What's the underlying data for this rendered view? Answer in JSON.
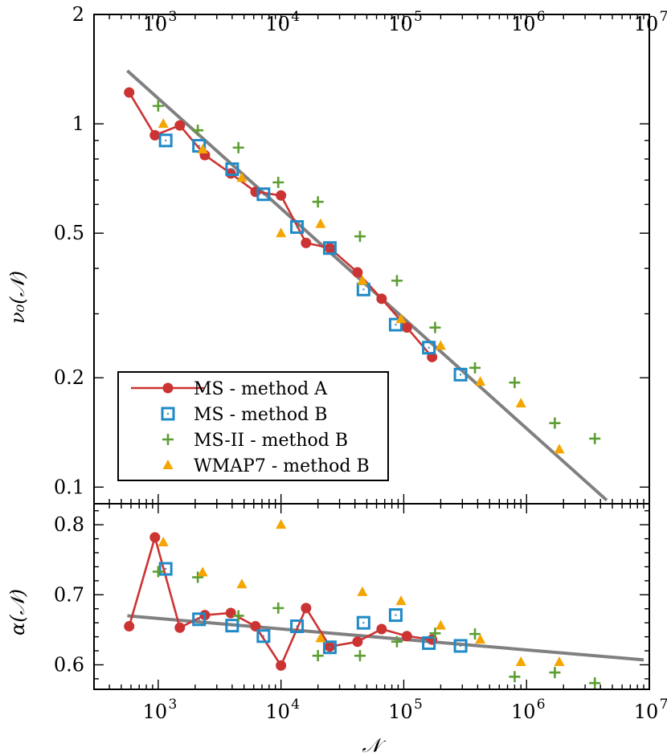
{
  "chart_data": [
    {
      "type": "scatter",
      "name": "top-panel",
      "title": "",
      "xlabel": "𝒩",
      "ylabel": "ν₀(𝒩)",
      "xscale": "log",
      "yscale": "log",
      "xlim": [
        300,
        10000000
      ],
      "ylim": [
        0.09,
        2
      ],
      "x_ticks": [
        {
          "value": 1000,
          "label": "10",
          "exp": "3"
        },
        {
          "value": 10000,
          "label": "10",
          "exp": "4"
        },
        {
          "value": 100000,
          "label": "10",
          "exp": "5"
        },
        {
          "value": 1000000,
          "label": "10",
          "exp": "6"
        },
        {
          "value": 10000000,
          "label": "10",
          "exp": "7"
        }
      ],
      "y_ticks": [
        {
          "value": 0.1,
          "label": "0.1"
        },
        {
          "value": 0.2,
          "label": "0.2"
        },
        {
          "value": 0.5,
          "label": "0.5"
        },
        {
          "value": 1,
          "label": "1"
        },
        {
          "value": 2,
          "label": "2"
        }
      ],
      "legend": {
        "placement": "bottom-left",
        "entries": [
          {
            "name": "MS - method A",
            "marker": "circle-line",
            "color": "#cc3333"
          },
          {
            "name": "MS - method B",
            "marker": "square",
            "color": "#1f8ac6"
          },
          {
            "name": "MS-II - method B",
            "marker": "plus",
            "color": "#5c9e31"
          },
          {
            "name": "WMAP7 - method B",
            "marker": "triangle",
            "color": "#f5a500"
          }
        ]
      },
      "fit_line": {
        "x": [
          560,
          4500000
        ],
        "y": [
          1.4,
          0.092
        ],
        "color": "#808080"
      },
      "series": [
        {
          "name": "MS - method A",
          "marker": "circle-line",
          "color": "#cc3333",
          "x": [
            580,
            940,
            1500,
            2400,
            3900,
            6200,
            10000,
            16000,
            25000,
            42000,
            66000,
            106000,
            170000
          ],
          "y": [
            1.22,
            0.93,
            0.99,
            0.82,
            0.73,
            0.65,
            0.635,
            0.47,
            0.455,
            0.39,
            0.33,
            0.275,
            0.228
          ]
        },
        {
          "name": "MS - method B",
          "marker": "square",
          "color": "#1f8ac6",
          "x": [
            1150,
            2150,
            4000,
            7200,
            13500,
            25000,
            47000,
            86000,
            160000,
            290000
          ],
          "y": [
            0.9,
            0.87,
            0.75,
            0.64,
            0.52,
            0.455,
            0.35,
            0.28,
            0.242,
            0.204
          ]
        },
        {
          "name": "MS-II - method B",
          "marker": "plus",
          "color": "#5c9e31",
          "x": [
            1000,
            2100,
            4500,
            9500,
            20000,
            44000,
            88000,
            180000,
            380000,
            800000,
            1700000,
            3600000
          ],
          "y": [
            1.12,
            0.96,
            0.86,
            0.69,
            0.61,
            0.49,
            0.37,
            0.275,
            0.213,
            0.194,
            0.15,
            0.136
          ]
        },
        {
          "name": "WMAP7 - method B",
          "marker": "triangle",
          "color": "#f5a500",
          "x": [
            1100,
            2300,
            4800,
            10000,
            21000,
            46000,
            95000,
            200000,
            420000,
            900000,
            1850000
          ],
          "y": [
            1.0,
            0.85,
            0.71,
            0.5,
            0.53,
            0.37,
            0.29,
            0.245,
            0.195,
            0.17,
            0.127
          ]
        }
      ]
    },
    {
      "type": "scatter",
      "name": "bottom-panel",
      "title": "",
      "xlabel": "𝒩",
      "ylabel": "α(𝒩)",
      "xscale": "log",
      "yscale": "linear",
      "xlim": [
        300,
        10000000
      ],
      "ylim": [
        0.565,
        0.83
      ],
      "x_ticks": [
        {
          "value": 1000,
          "label": "10",
          "exp": "3"
        },
        {
          "value": 10000,
          "label": "10",
          "exp": "4"
        },
        {
          "value": 100000,
          "label": "10",
          "exp": "5"
        },
        {
          "value": 1000000,
          "label": "10",
          "exp": "6"
        },
        {
          "value": 10000000,
          "label": "10",
          "exp": "7"
        }
      ],
      "y_ticks": [
        {
          "value": 0.6,
          "label": "0.6"
        },
        {
          "value": 0.7,
          "label": "0.7"
        },
        {
          "value": 0.8,
          "label": "0.8"
        }
      ],
      "fit_line": {
        "x": [
          560,
          9000000
        ],
        "y": [
          0.67,
          0.607
        ],
        "color": "#808080"
      },
      "series": [
        {
          "name": "MS - method A",
          "marker": "circle-line",
          "color": "#cc3333",
          "x": [
            580,
            940,
            1500,
            2400,
            3900,
            6200,
            10000,
            16000,
            25000,
            42000,
            66000,
            106000,
            170000
          ],
          "y": [
            0.655,
            0.782,
            0.653,
            0.671,
            0.674,
            0.655,
            0.599,
            0.681,
            0.626,
            0.633,
            0.651,
            0.641,
            0.636
          ]
        },
        {
          "name": "MS - method B",
          "marker": "square",
          "color": "#1f8ac6",
          "x": [
            1150,
            2150,
            4000,
            7200,
            13500,
            25000,
            47000,
            86000,
            160000,
            290000
          ],
          "y": [
            0.737,
            0.665,
            0.656,
            0.641,
            0.655,
            0.625,
            0.66,
            0.671,
            0.631,
            0.627
          ]
        },
        {
          "name": "MS-II - method B",
          "marker": "plus",
          "color": "#5c9e31",
          "x": [
            1000,
            2100,
            4500,
            9500,
            20000,
            44000,
            88000,
            180000,
            380000,
            800000,
            1700000,
            3600000
          ],
          "y": [
            0.733,
            0.725,
            0.67,
            0.681,
            0.613,
            0.613,
            0.633,
            0.645,
            0.644,
            0.583,
            0.589,
            0.574
          ]
        },
        {
          "name": "WMAP7 - method B",
          "marker": "triangle",
          "color": "#f5a500",
          "x": [
            1100,
            2300,
            4800,
            10000,
            21000,
            46000,
            95000,
            200000,
            420000,
            900000,
            1850000
          ],
          "y": [
            0.775,
            0.732,
            0.715,
            0.8,
            0.638,
            0.704,
            0.691,
            0.656,
            0.636,
            0.604,
            0.604
          ]
        }
      ]
    }
  ]
}
